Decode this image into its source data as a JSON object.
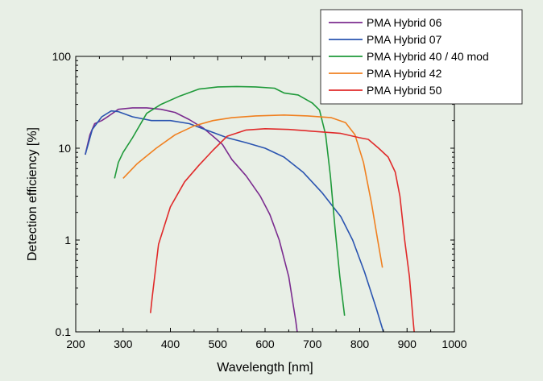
{
  "chart_data": {
    "type": "line",
    "xlabel": "Wavelength [nm]",
    "ylabel": "Detection efficiency [%]",
    "xlim": [
      200,
      1000
    ],
    "ylim": [
      0.1,
      100
    ],
    "yscale": "log",
    "grid": false,
    "legend_position": "top-right",
    "xticks": [
      200,
      300,
      400,
      500,
      600,
      700,
      800,
      900,
      1000
    ],
    "xtick_labels": [
      "200",
      "300",
      "400",
      "500",
      "600",
      "700",
      "800",
      "900",
      "1000"
    ],
    "yticks": [
      0.1,
      1,
      10,
      100
    ],
    "ytick_labels": [
      "0.1",
      "1",
      "10",
      "100"
    ],
    "series": [
      {
        "name": "PMA Hybrid 06",
        "color": "#7b2c8f",
        "points": [
          [
            220,
            8.5
          ],
          [
            230,
            14
          ],
          [
            240,
            18.5
          ],
          [
            255,
            20
          ],
          [
            270,
            22.5
          ],
          [
            290,
            26.5
          ],
          [
            320,
            27.5
          ],
          [
            350,
            27.5
          ],
          [
            380,
            26.5
          ],
          [
            410,
            24.5
          ],
          [
            440,
            20.5
          ],
          [
            470,
            16.5
          ],
          [
            490,
            13.5
          ],
          [
            510,
            11
          ],
          [
            530,
            7.5
          ],
          [
            560,
            5
          ],
          [
            590,
            3
          ],
          [
            610,
            1.9
          ],
          [
            630,
            1
          ],
          [
            650,
            0.4
          ],
          [
            665,
            0.13
          ],
          [
            668,
            0.1
          ]
        ]
      },
      {
        "name": "PMA Hybrid 07",
        "color": "#2a54b0",
        "points": [
          [
            220,
            8.5
          ],
          [
            235,
            16
          ],
          [
            255,
            22
          ],
          [
            275,
            25.5
          ],
          [
            290,
            25
          ],
          [
            320,
            22
          ],
          [
            360,
            20
          ],
          [
            400,
            20
          ],
          [
            440,
            18.5
          ],
          [
            480,
            15.5
          ],
          [
            520,
            13
          ],
          [
            560,
            11.5
          ],
          [
            600,
            10
          ],
          [
            640,
            8
          ],
          [
            680,
            5.5
          ],
          [
            720,
            3.3
          ],
          [
            760,
            1.8
          ],
          [
            785,
            1
          ],
          [
            810,
            0.45
          ],
          [
            835,
            0.18
          ],
          [
            850,
            0.1
          ]
        ]
      },
      {
        "name": "PMA Hybrid 40 / 40 mod",
        "color": "#1f9a3a",
        "points": [
          [
            282,
            4.7
          ],
          [
            290,
            7
          ],
          [
            300,
            9
          ],
          [
            320,
            13
          ],
          [
            350,
            24
          ],
          [
            380,
            30
          ],
          [
            420,
            37
          ],
          [
            460,
            44
          ],
          [
            500,
            46.5
          ],
          [
            540,
            47
          ],
          [
            580,
            46.5
          ],
          [
            620,
            45
          ],
          [
            640,
            40
          ],
          [
            670,
            38
          ],
          [
            700,
            31
          ],
          [
            715,
            26
          ],
          [
            728,
            14
          ],
          [
            738,
            5
          ],
          [
            748,
            1.3
          ],
          [
            758,
            0.4
          ],
          [
            768,
            0.15
          ]
        ]
      },
      {
        "name": "PMA Hybrid 42",
        "color": "#f08020",
        "points": [
          [
            300,
            4.7
          ],
          [
            330,
            6.8
          ],
          [
            370,
            10
          ],
          [
            410,
            14
          ],
          [
            450,
            17.5
          ],
          [
            490,
            20
          ],
          [
            530,
            21.5
          ],
          [
            580,
            22.5
          ],
          [
            640,
            23
          ],
          [
            690,
            22.5
          ],
          [
            740,
            21.5
          ],
          [
            770,
            19
          ],
          [
            790,
            14
          ],
          [
            808,
            7
          ],
          [
            825,
            2.5
          ],
          [
            838,
            1
          ],
          [
            848,
            0.5
          ]
        ]
      },
      {
        "name": "PMA Hybrid 50",
        "color": "#e02a2a",
        "points": [
          [
            358,
            0.16
          ],
          [
            362,
            0.25
          ],
          [
            375,
            0.9
          ],
          [
            400,
            2.3
          ],
          [
            430,
            4.3
          ],
          [
            460,
            6.5
          ],
          [
            490,
            9.5
          ],
          [
            520,
            13.5
          ],
          [
            560,
            15.8
          ],
          [
            600,
            16.3
          ],
          [
            650,
            16
          ],
          [
            700,
            15.3
          ],
          [
            760,
            14.5
          ],
          [
            800,
            13
          ],
          [
            818,
            12.5
          ],
          [
            840,
            10
          ],
          [
            860,
            8
          ],
          [
            875,
            5.5
          ],
          [
            885,
            3
          ],
          [
            895,
            1
          ],
          [
            905,
            0.4
          ],
          [
            912,
            0.15
          ],
          [
            915,
            0.1
          ]
        ]
      }
    ]
  }
}
